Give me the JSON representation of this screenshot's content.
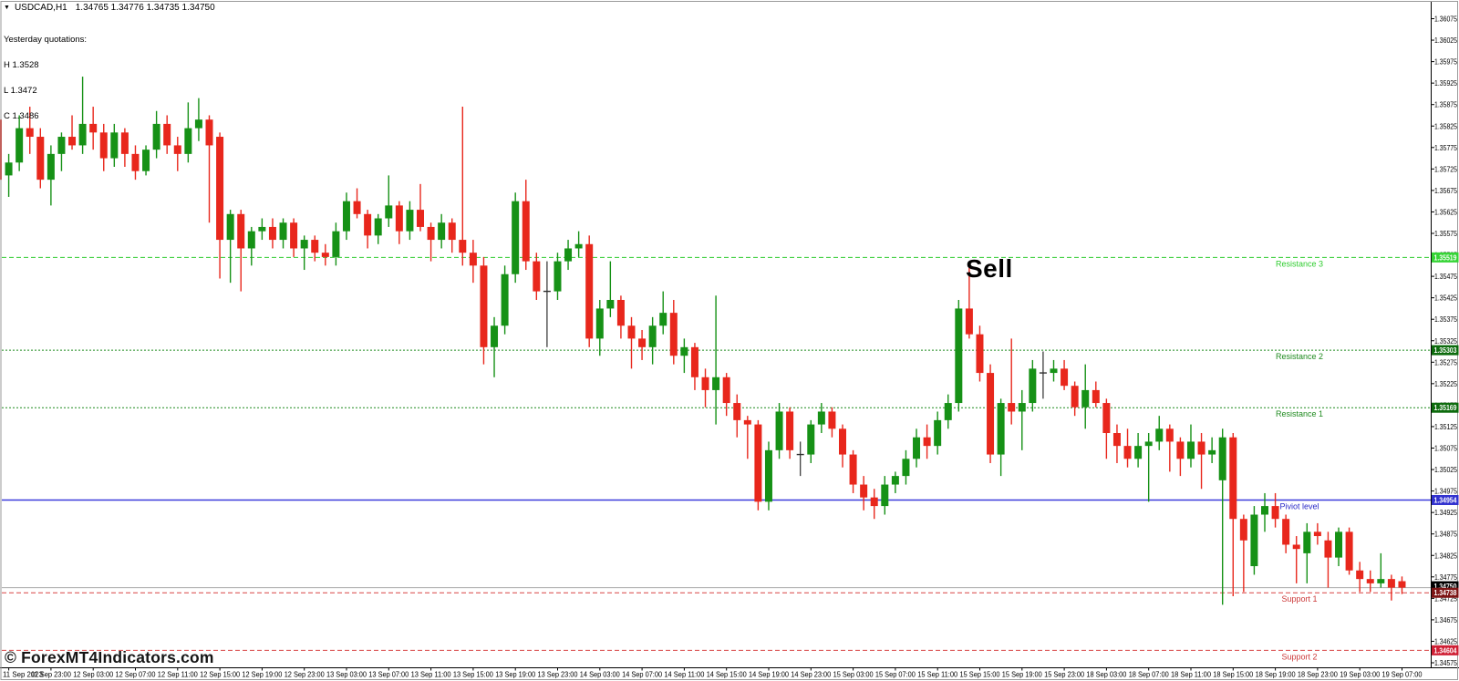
{
  "header": {
    "dropdown_icon": "▼",
    "symbol_timeframe": "USDCAD,H1",
    "ohlc": "1.34765 1.34776 1.34735 1.34750"
  },
  "yesterday": {
    "heading": "Yesterday quotations:",
    "high": "H 1.3528",
    "low": "L 1.3472",
    "close": "C 1.3486"
  },
  "annotation": {
    "text": "Sell"
  },
  "watermark": {
    "text": "© ForexMT4Indicators.com"
  },
  "colors": {
    "background": "#ffffff",
    "bull": "#169116",
    "bear": "#e8271c",
    "doji": "#2f2f2f",
    "current_line": "#a8a8a8",
    "axis_text": "#000000",
    "badge_current": "#000000",
    "frame": "#9a9a9a"
  },
  "chart_data": {
    "type": "candlestick",
    "symbol": "USDCAD",
    "timeframe": "H1",
    "candles_format": "[open, high, low, close]",
    "price_axis": {
      "max": 1.36075,
      "min": 1.34575,
      "step": 0.0005,
      "decimals": 5,
      "side": "right"
    },
    "time_labels": [
      "11 Sep 2023",
      "11 Sep 23:00",
      "12 Sep 03:00",
      "12 Sep 07:00",
      "12 Sep 11:00",
      "12 Sep 15:00",
      "12 Sep 19:00",
      "12 Sep 23:00",
      "13 Sep 03:00",
      "13 Sep 07:00",
      "13 Sep 11:00",
      "13 Sep 15:00",
      "13 Sep 19:00",
      "13 Sep 23:00",
      "14 Sep 03:00",
      "14 Sep 07:00",
      "14 Sep 11:00",
      "14 Sep 15:00",
      "14 Sep 19:00",
      "14 Sep 23:00",
      "15 Sep 03:00",
      "15 Sep 07:00",
      "15 Sep 11:00",
      "15 Sep 15:00",
      "15 Sep 19:00",
      "15 Sep 23:00",
      "18 Sep 03:00",
      "18 Sep 07:00",
      "18 Sep 11:00",
      "18 Sep 15:00",
      "18 Sep 19:00",
      "18 Sep 23:00",
      "19 Sep 03:00",
      "19 Sep 07:00"
    ],
    "levels": [
      {
        "name": "resistance-3",
        "label": "Resistance 3",
        "value": 1.35519,
        "style": "dash",
        "line_color": "#2ecc2e",
        "text_color": "#2ecc2e",
        "badge_bg": "#35d435"
      },
      {
        "name": "resistance-2",
        "label": "Resistance 2",
        "value": 1.35303,
        "style": "dot",
        "line_color": "#1e8a1e",
        "text_color": "#1e8a1e",
        "badge_bg": "#0d6b0d"
      },
      {
        "name": "resistance-1",
        "label": "Resistance 1",
        "value": 1.35169,
        "style": "dot",
        "line_color": "#1e8a1e",
        "text_color": "#1e8a1e",
        "badge_bg": "#0d6b0d"
      },
      {
        "name": "pivot",
        "label": "Piviot level",
        "value": 1.34954,
        "style": "solid",
        "line_color": "#3b3bdc",
        "text_color": "#2a2ac8",
        "badge_bg": "#3232cf"
      },
      {
        "name": "support-1",
        "label": "Support 1",
        "value": 1.34738,
        "style": "dash",
        "line_color": "#d84343",
        "text_color": "#cc3a3a",
        "badge_bg": "#7d1414"
      },
      {
        "name": "support-2",
        "label": "Support 2",
        "value": 1.34604,
        "style": "dash",
        "line_color": "#d84343",
        "text_color": "#cc3a3a",
        "badge_bg": "#cf1f34"
      }
    ],
    "current_price": {
      "value": 1.3475
    },
    "candles": [
      [
        1.3584,
        1.3585,
        1.3568,
        1.357
      ],
      [
        1.3571,
        1.3576,
        1.3566,
        1.3574
      ],
      [
        1.3574,
        1.3585,
        1.3572,
        1.3582
      ],
      [
        1.3582,
        1.3587,
        1.3576,
        1.358
      ],
      [
        1.358,
        1.3582,
        1.3568,
        1.357
      ],
      [
        1.357,
        1.3578,
        1.3564,
        1.3576
      ],
      [
        1.3576,
        1.3581,
        1.3572,
        1.358
      ],
      [
        1.358,
        1.3585,
        1.3577,
        1.3578
      ],
      [
        1.3578,
        1.3594,
        1.3576,
        1.3583
      ],
      [
        1.3583,
        1.3587,
        1.3577,
        1.3581
      ],
      [
        1.3581,
        1.3583,
        1.3572,
        1.3575
      ],
      [
        1.3575,
        1.3583,
        1.3573,
        1.3581
      ],
      [
        1.3581,
        1.3582,
        1.3573,
        1.3576
      ],
      [
        1.3576,
        1.3578,
        1.357,
        1.3572
      ],
      [
        1.3572,
        1.3578,
        1.3571,
        1.3577
      ],
      [
        1.3577,
        1.3586,
        1.3575,
        1.3583
      ],
      [
        1.3583,
        1.3585,
        1.3576,
        1.3578
      ],
      [
        1.3578,
        1.358,
        1.3572,
        1.3576
      ],
      [
        1.3576,
        1.3588,
        1.3574,
        1.3582
      ],
      [
        1.3582,
        1.3589,
        1.3579,
        1.3584
      ],
      [
        1.3584,
        1.3585,
        1.356,
        1.3578
      ],
      [
        1.358,
        1.3581,
        1.3547,
        1.3556
      ],
      [
        1.3556,
        1.3563,
        1.3546,
        1.3562
      ],
      [
        1.3562,
        1.3563,
        1.3544,
        1.3554
      ],
      [
        1.3554,
        1.3559,
        1.355,
        1.3558
      ],
      [
        1.3558,
        1.3561,
        1.3556,
        1.3559
      ],
      [
        1.3559,
        1.3561,
        1.3554,
        1.3556
      ],
      [
        1.3556,
        1.3561,
        1.3554,
        1.356
      ],
      [
        1.356,
        1.3561,
        1.3552,
        1.3554
      ],
      [
        1.3554,
        1.3557,
        1.3549,
        1.3556
      ],
      [
        1.3556,
        1.3557,
        1.3551,
        1.3553
      ],
      [
        1.3553,
        1.3555,
        1.355,
        1.3552
      ],
      [
        1.3552,
        1.356,
        1.355,
        1.3558
      ],
      [
        1.3558,
        1.3567,
        1.3556,
        1.3565
      ],
      [
        1.3565,
        1.3568,
        1.3561,
        1.3562
      ],
      [
        1.3562,
        1.3563,
        1.3554,
        1.3557
      ],
      [
        1.3557,
        1.3562,
        1.3555,
        1.3561
      ],
      [
        1.3561,
        1.3571,
        1.3559,
        1.3564
      ],
      [
        1.3564,
        1.3565,
        1.3555,
        1.3558
      ],
      [
        1.3558,
        1.3565,
        1.3556,
        1.3563
      ],
      [
        1.3563,
        1.3569,
        1.3558,
        1.3559
      ],
      [
        1.3559,
        1.356,
        1.3551,
        1.3556
      ],
      [
        1.3556,
        1.3562,
        1.3554,
        1.356
      ],
      [
        1.356,
        1.3561,
        1.3553,
        1.3556
      ],
      [
        1.3556,
        1.3587,
        1.355,
        1.3553
      ],
      [
        1.3553,
        1.3556,
        1.3546,
        1.355
      ],
      [
        1.355,
        1.3552,
        1.3527,
        1.3531
      ],
      [
        1.3531,
        1.3538,
        1.3524,
        1.3536
      ],
      [
        1.3536,
        1.355,
        1.3534,
        1.3548
      ],
      [
        1.3548,
        1.3567,
        1.3546,
        1.3565
      ],
      [
        1.3565,
        1.357,
        1.3549,
        1.3551
      ],
      [
        1.3551,
        1.3553,
        1.3542,
        1.3544
      ],
      [
        1.3544,
        1.3551,
        1.3531,
        1.3544
      ],
      [
        1.3544,
        1.3553,
        1.3542,
        1.3551
      ],
      [
        1.3551,
        1.3556,
        1.3549,
        1.3554
      ],
      [
        1.3554,
        1.3558,
        1.3552,
        1.3555
      ],
      [
        1.3555,
        1.3557,
        1.3531,
        1.3533
      ],
      [
        1.3533,
        1.3542,
        1.3529,
        1.354
      ],
      [
        1.354,
        1.3551,
        1.3538,
        1.3542
      ],
      [
        1.3542,
        1.3543,
        1.3533,
        1.3536
      ],
      [
        1.3536,
        1.3538,
        1.3526,
        1.3533
      ],
      [
        1.3533,
        1.3535,
        1.3528,
        1.3531
      ],
      [
        1.3531,
        1.3538,
        1.3527,
        1.3536
      ],
      [
        1.3536,
        1.3544,
        1.3534,
        1.3539
      ],
      [
        1.3539,
        1.3542,
        1.3527,
        1.3529
      ],
      [
        1.3529,
        1.3533,
        1.3525,
        1.3531
      ],
      [
        1.3531,
        1.3532,
        1.3521,
        1.3524
      ],
      [
        1.3524,
        1.3526,
        1.3517,
        1.3521
      ],
      [
        1.3521,
        1.3543,
        1.3513,
        1.3524
      ],
      [
        1.3524,
        1.3525,
        1.3515,
        1.3518
      ],
      [
        1.3518,
        1.352,
        1.351,
        1.3514
      ],
      [
        1.3514,
        1.3515,
        1.3505,
        1.3513
      ],
      [
        1.3513,
        1.3514,
        1.3493,
        1.3495
      ],
      [
        1.3495,
        1.3509,
        1.3493,
        1.3507
      ],
      [
        1.3507,
        1.3518,
        1.3505,
        1.3516
      ],
      [
        1.3516,
        1.3517,
        1.3505,
        1.3507
      ],
      [
        1.3506,
        1.3509,
        1.3501,
        1.3506
      ],
      [
        1.3506,
        1.3514,
        1.3504,
        1.3513
      ],
      [
        1.3513,
        1.3518,
        1.3511,
        1.3516
      ],
      [
        1.3516,
        1.3517,
        1.351,
        1.3512
      ],
      [
        1.3512,
        1.3513,
        1.3503,
        1.3506
      ],
      [
        1.3506,
        1.3507,
        1.3497,
        1.3499
      ],
      [
        1.3499,
        1.3501,
        1.3493,
        1.3496
      ],
      [
        1.3496,
        1.3498,
        1.3491,
        1.3494
      ],
      [
        1.3494,
        1.3501,
        1.3492,
        1.3499
      ],
      [
        1.3499,
        1.3502,
        1.3497,
        1.3501
      ],
      [
        1.3501,
        1.3507,
        1.3499,
        1.3505
      ],
      [
        1.3505,
        1.3512,
        1.3503,
        1.351
      ],
      [
        1.351,
        1.3513,
        1.3505,
        1.3508
      ],
      [
        1.3508,
        1.3516,
        1.3506,
        1.3514
      ],
      [
        1.3514,
        1.352,
        1.3512,
        1.3518
      ],
      [
        1.3518,
        1.3542,
        1.3516,
        1.354
      ],
      [
        1.354,
        1.355,
        1.3533,
        1.3534
      ],
      [
        1.3534,
        1.3536,
        1.3523,
        1.3525
      ],
      [
        1.3525,
        1.3527,
        1.3504,
        1.3506
      ],
      [
        1.3506,
        1.3519,
        1.3501,
        1.3518
      ],
      [
        1.3518,
        1.3533,
        1.3513,
        1.3516
      ],
      [
        1.3516,
        1.3521,
        1.3507,
        1.3518
      ],
      [
        1.3518,
        1.3528,
        1.3516,
        1.3526
      ],
      [
        1.3525,
        1.353,
        1.3519,
        1.3525
      ],
      [
        1.3525,
        1.3528,
        1.3523,
        1.3526
      ],
      [
        1.3526,
        1.3528,
        1.3521,
        1.3522
      ],
      [
        1.3522,
        1.3523,
        1.3515,
        1.3517
      ],
      [
        1.3517,
        1.3527,
        1.3512,
        1.3521
      ],
      [
        1.3521,
        1.3523,
        1.3517,
        1.3518
      ],
      [
        1.3518,
        1.3519,
        1.3505,
        1.3511
      ],
      [
        1.3511,
        1.3513,
        1.3504,
        1.3508
      ],
      [
        1.3508,
        1.3512,
        1.3503,
        1.3505
      ],
      [
        1.3505,
        1.3511,
        1.3503,
        1.3508
      ],
      [
        1.3508,
        1.3511,
        1.3495,
        1.3509
      ],
      [
        1.3509,
        1.3515,
        1.3507,
        1.3512
      ],
      [
        1.3512,
        1.3513,
        1.3502,
        1.3509
      ],
      [
        1.3509,
        1.351,
        1.3501,
        1.3505
      ],
      [
        1.3505,
        1.3513,
        1.3503,
        1.3509
      ],
      [
        1.3509,
        1.3511,
        1.3498,
        1.3506
      ],
      [
        1.3506,
        1.351,
        1.3504,
        1.3507
      ],
      [
        1.35,
        1.3512,
        1.3471,
        1.351
      ],
      [
        1.351,
        1.3511,
        1.3473,
        1.3491
      ],
      [
        1.3491,
        1.3492,
        1.3474,
        1.3486
      ],
      [
        1.348,
        1.3494,
        1.3478,
        1.3492
      ],
      [
        1.3492,
        1.3497,
        1.3488,
        1.3494
      ],
      [
        1.3494,
        1.3497,
        1.3489,
        1.3491
      ],
      [
        1.3491,
        1.3492,
        1.3483,
        1.3485
      ],
      [
        1.3485,
        1.3487,
        1.3476,
        1.3484
      ],
      [
        1.3483,
        1.349,
        1.3476,
        1.3488
      ],
      [
        1.3488,
        1.349,
        1.3485,
        1.3487
      ],
      [
        1.3486,
        1.3488,
        1.3475,
        1.3482
      ],
      [
        1.3482,
        1.3489,
        1.348,
        1.3488
      ],
      [
        1.3488,
        1.3489,
        1.3478,
        1.3479
      ],
      [
        1.3479,
        1.3481,
        1.3474,
        1.3477
      ],
      [
        1.3477,
        1.3479,
        1.3474,
        1.3476
      ],
      [
        1.3476,
        1.3483,
        1.3475,
        1.3477
      ],
      [
        1.3477,
        1.3478,
        1.3472,
        1.3475
      ],
      [
        1.34765,
        1.34776,
        1.34735,
        1.3475
      ]
    ]
  }
}
